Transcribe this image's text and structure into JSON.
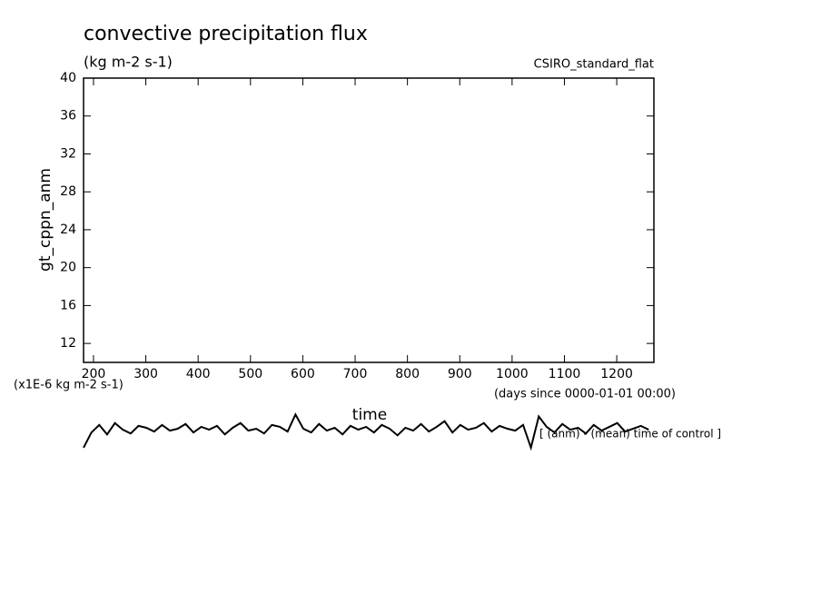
{
  "chart_data": {
    "type": "line",
    "title": "convective precipitation flux",
    "subtitle": "(kg m-2 s-1)",
    "source": "CSIRO_standard_flat",
    "y_label": "gt_cppn_anm",
    "x_label": "time",
    "x_units": "(days since 0000-01-01 00:00)",
    "y_units": "(x1E-6 kg m-2 s-1)",
    "annotation": "[ (anm) - (mean) time of control ]",
    "xlim": [
      181,
      1271
    ],
    "xticks": [
      200,
      300,
      400,
      500,
      600,
      700,
      800,
      900,
      1000,
      1100,
      1200
    ],
    "ylim": [
      10,
      40
    ],
    "yticks": [
      12,
      16,
      20,
      24,
      28,
      32,
      36,
      40
    ],
    "x": [
      181,
      196,
      211,
      226,
      241,
      256,
      271,
      286,
      301,
      316,
      331,
      346,
      361,
      376,
      391,
      406,
      421,
      436,
      451,
      466,
      481,
      496,
      511,
      526,
      541,
      556,
      571,
      586,
      601,
      616,
      631,
      646,
      661,
      676,
      691,
      706,
      721,
      736,
      751,
      766,
      781,
      796,
      811,
      826,
      841,
      856,
      871,
      886,
      901,
      916,
      931,
      946,
      961,
      976,
      991,
      1006,
      1021,
      1036,
      1051,
      1066,
      1081,
      1096,
      1111,
      1126,
      1141,
      1156,
      1171,
      1186,
      1201,
      1216,
      1231,
      1246,
      1261
    ],
    "series": [
      {
        "color": "#000000",
        "values": [
          1.0,
          2.6,
          3.4,
          2.4,
          3.6,
          2.9,
          2.5,
          3.3,
          3.1,
          2.7,
          3.4,
          2.8,
          3.0,
          3.5,
          2.6,
          3.2,
          2.9,
          3.3,
          2.4,
          3.1,
          3.6,
          2.8,
          3.0,
          2.5,
          3.4,
          3.2,
          2.7,
          4.5,
          3.0,
          2.6,
          3.5,
          2.8,
          3.1,
          2.4,
          3.3,
          2.9,
          3.2,
          2.6,
          3.4,
          3.0,
          2.3,
          3.1,
          2.8,
          3.5,
          2.7,
          3.2,
          3.8,
          2.6,
          3.4,
          2.9,
          3.1,
          3.6,
          2.7,
          3.3,
          3.0,
          2.8,
          3.4,
          1.0,
          4.3,
          3.2,
          2.6,
          3.5,
          2.9,
          3.1,
          2.5,
          3.4,
          2.8,
          3.2,
          3.6,
          2.7,
          3.0,
          3.3,
          2.9
        ]
      }
    ]
  }
}
